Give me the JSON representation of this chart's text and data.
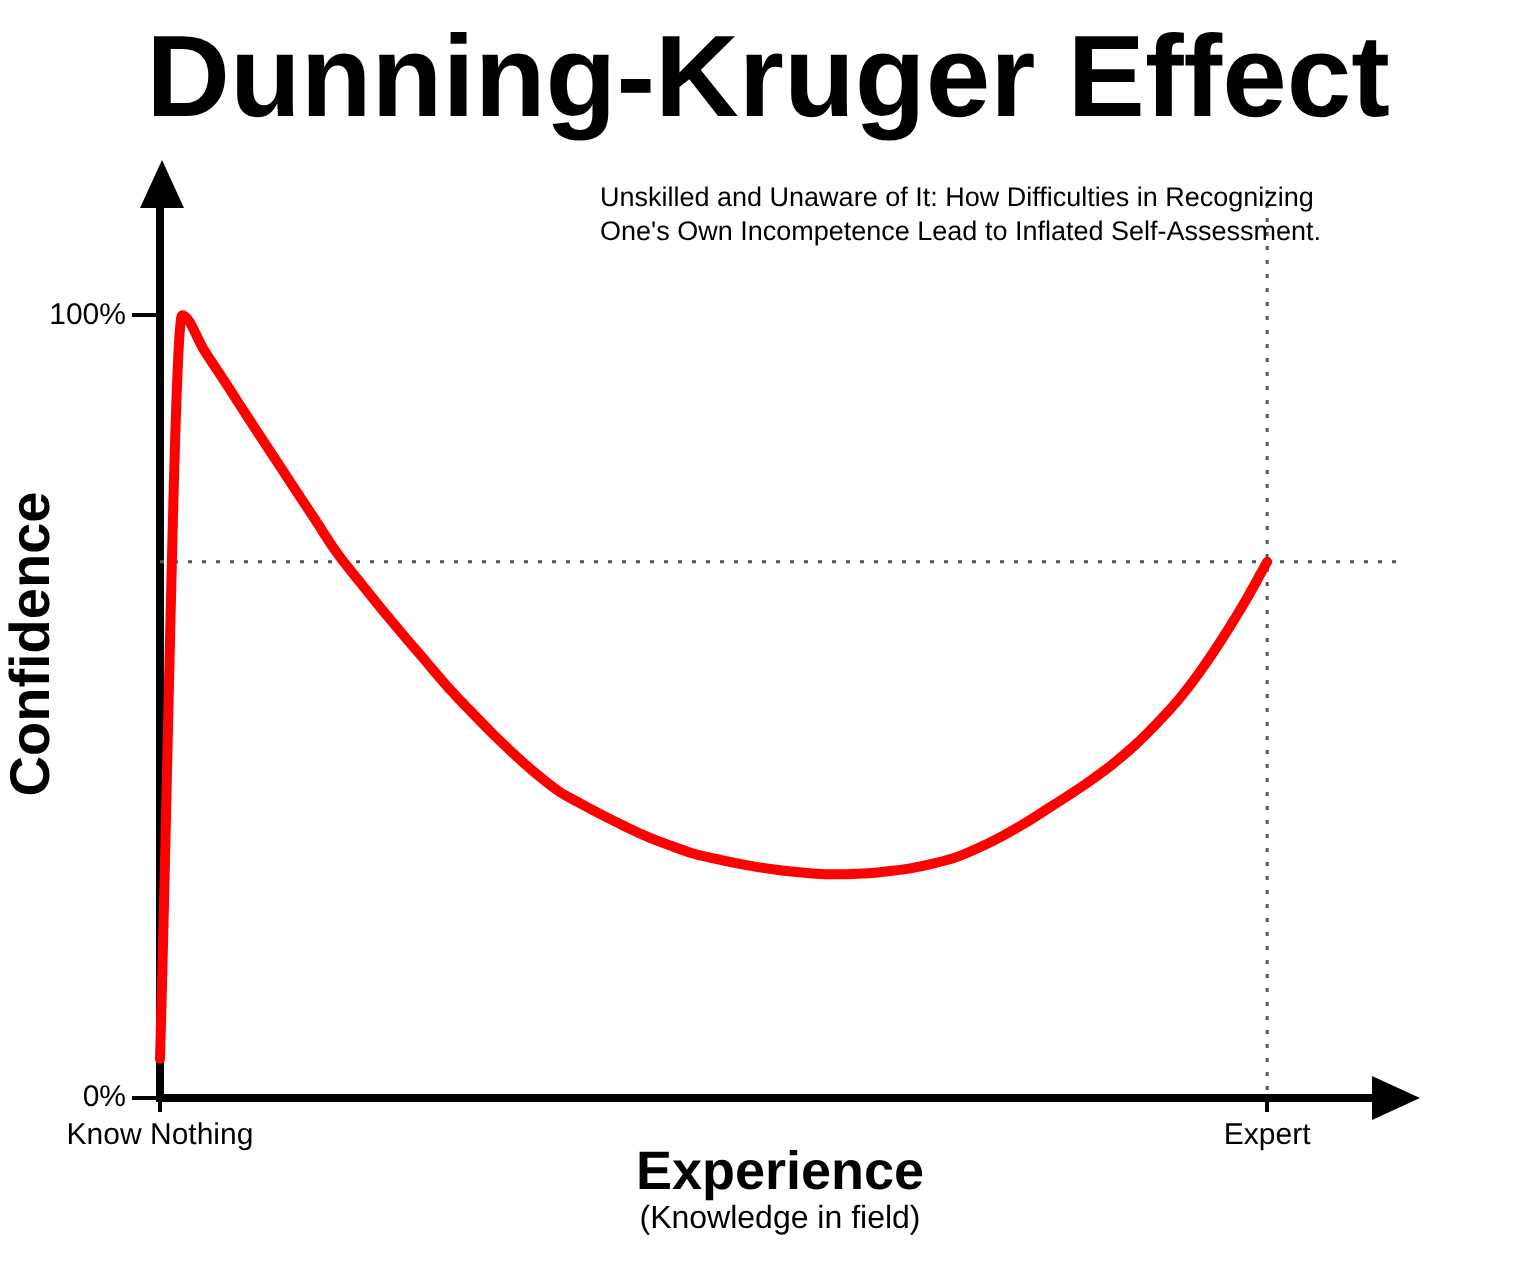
{
  "chart_data": {
    "type": "line",
    "title": "Dunning-Kruger Effect",
    "subtitle": "Unskilled and Unaware of It: How Difficulties in Recognizing One's Own Incompetence Lead to Inflated Self-Assessment.",
    "xlabel": "Experience",
    "ylabel": "Confidence",
    "annotations": [
      "(Knowledge in field)"
    ],
    "categories": [
      "Know Nothing",
      null,
      null,
      null,
      null,
      null,
      null,
      null,
      null,
      null,
      null,
      null,
      null,
      null,
      null,
      null,
      null,
      null,
      null,
      null,
      null,
      null,
      null,
      null,
      null,
      null,
      null,
      null,
      null,
      null,
      null,
      null,
      null,
      null,
      null,
      null,
      null,
      null,
      null,
      null,
      null,
      null,
      null,
      null,
      null,
      null,
      null,
      null,
      null,
      null,
      "Expert",
      null,
      null,
      null,
      null,
      null,
      null
    ],
    "series": [
      {
        "color": "#ff0000",
        "values": [
          5,
          100,
          95.5,
          91.2,
          86.8,
          82.5,
          78.2,
          73.9,
          69.6,
          66,
          62.5,
          59.1,
          55.8,
          52.5,
          49.5,
          46.6,
          43.9,
          41.4,
          39.2,
          37.6,
          36.1,
          34.7,
          33.4,
          32.3,
          31.3,
          30.6,
          30,
          29.5,
          29.1,
          28.8,
          28.6,
          28.6,
          28.7,
          29,
          29.4,
          30,
          30.8,
          32,
          33.4,
          35,
          36.8,
          38.6,
          40.5,
          42.6,
          45,
          47.8,
          50.9,
          54.6,
          58.8,
          63.4,
          68.5,
          null,
          null,
          null,
          null,
          null,
          null
        ]
      }
    ],
    "ylim": [
      0,
      116
    ],
    "yticks": [
      {
        "value": 0,
        "label": "0%"
      },
      {
        "value": 100,
        "label": "100%"
      }
    ],
    "ref_lines": [
      {
        "axis": "y",
        "value": 68.5,
        "color": "#555555",
        "line_style": "dotted"
      },
      {
        "axis": "x",
        "value": "Expert",
        "color": "#555555",
        "line_style": "dotted"
      }
    ],
    "marker": "none",
    "line_style": "solid",
    "legend": false
  }
}
